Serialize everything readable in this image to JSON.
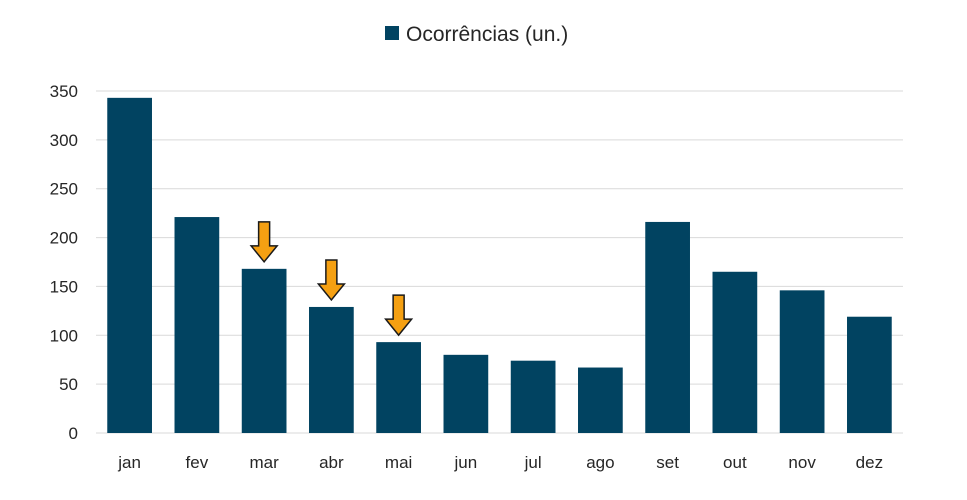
{
  "chart_data": {
    "type": "bar",
    "categories": [
      "jan",
      "fev",
      "mar",
      "abr",
      "mai",
      "jun",
      "jul",
      "ago",
      "set",
      "out",
      "nov",
      "dez"
    ],
    "series": [
      {
        "name": "Ocorrências (un.)",
        "values": [
          343,
          221,
          168,
          129,
          93,
          80,
          74,
          67,
          216,
          165,
          146,
          119
        ]
      }
    ],
    "ylim": [
      0,
      350
    ],
    "yticks": [
      0,
      50,
      100,
      150,
      200,
      250,
      300,
      350
    ],
    "grid": true,
    "legend_position": "top-center",
    "highlighted_categories": [
      "mar",
      "abr",
      "mai"
    ],
    "annotation": "down-arrow"
  },
  "colors": {
    "bar": "#014361",
    "arrow_fill": "#F5A012",
    "arrow_stroke": "#1a1a1a",
    "grid": "#d9d9d9",
    "text": "#262626"
  }
}
